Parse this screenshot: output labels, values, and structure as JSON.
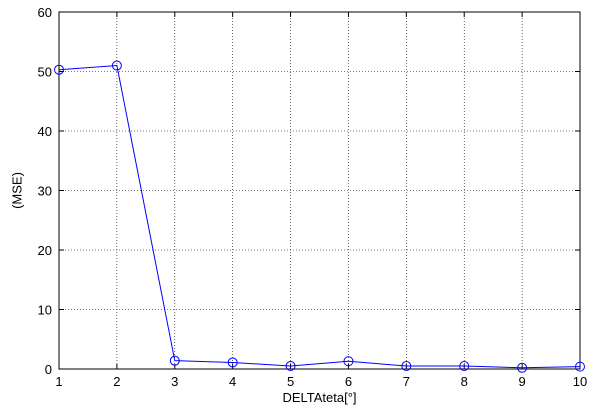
{
  "chart_data": {
    "type": "line",
    "title": "",
    "xlabel": "DELTAteta[°]",
    "ylabel": "(MSE)",
    "x": [
      1,
      2,
      3,
      4,
      5,
      6,
      7,
      8,
      9,
      10
    ],
    "xlim": [
      1,
      10
    ],
    "ylim": [
      0,
      60
    ],
    "xticks": [
      1,
      2,
      3,
      4,
      5,
      6,
      7,
      8,
      9,
      10
    ],
    "yticks": [
      0,
      10,
      20,
      30,
      40,
      50,
      60
    ],
    "grid": true,
    "legend": "none",
    "series": [
      {
        "values": [
          50.3,
          51.0,
          1.4,
          1.1,
          0.5,
          1.3,
          0.5,
          0.5,
          0.2,
          0.4
        ],
        "color": "#0000ff",
        "marker": "circle"
      }
    ]
  }
}
